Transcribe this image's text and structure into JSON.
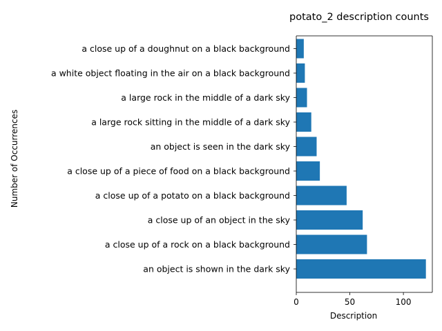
{
  "chart_data": {
    "type": "bar",
    "orientation": "horizontal",
    "title": "potato_2 description counts",
    "xlabel": "Description",
    "ylabel": "Number of Occurrences",
    "xlim": [
      0,
      127
    ],
    "xticks": [
      0,
      50,
      100
    ],
    "grid": false,
    "bar_color": "#1f77b4",
    "categories": [
      "an object is shown in the dark sky",
      "a close up of a rock on a black background",
      "a close up of an object in the sky",
      "a close up of a potato on a black background",
      "a close up of a piece of food on a black background",
      "an object is seen in the dark sky",
      "a large rock sitting in the middle of a dark sky",
      "a large rock in the middle of a dark sky",
      "a white object floating in the air on a black background",
      "a close up of a doughnut on a black background"
    ],
    "values": [
      121,
      66,
      62,
      47,
      22,
      19,
      14,
      10,
      8,
      7
    ]
  }
}
